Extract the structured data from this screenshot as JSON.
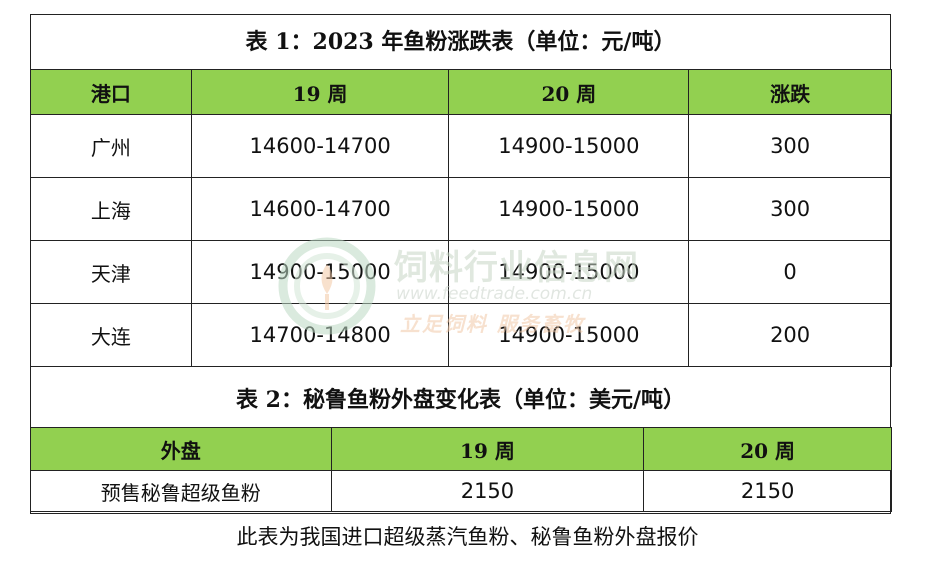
{
  "table1": {
    "title": "表 1：2023 年鱼粉涨跌表（单位：元/吨）",
    "headers": [
      "港口",
      "19 周",
      "20 周",
      "涨跌"
    ],
    "rows": [
      {
        "port": "广州",
        "w19": "14600-14700",
        "w20": "14900-15000",
        "change": "300"
      },
      {
        "port": "上海",
        "w19": "14600-14700",
        "w20": "14900-15000",
        "change": "300"
      },
      {
        "port": "天津",
        "w19": "14900-15000",
        "w20": "14900-15000",
        "change": "0"
      },
      {
        "port": "大连",
        "w19": "14700-14800",
        "w20": "14900-15000",
        "change": "200"
      }
    ]
  },
  "table2": {
    "title": "表 2：秘鲁鱼粉外盘变化表（单位：美元/吨）",
    "headers": [
      "外盘",
      "19 周",
      "20 周"
    ],
    "rows": [
      {
        "item": "预售秘鲁超级鱼粉",
        "w19": "2150",
        "w20": "2150"
      }
    ]
  },
  "caption": "此表为我国进口超级蒸汽鱼粉、秘鲁鱼粉外盘报价",
  "watermark": {
    "name": "饲料行业信息网",
    "url": "www.feedtrade.com.cn",
    "slogan": "立足饲料  服务畜牧"
  },
  "colors": {
    "header_bg": "#92d050",
    "border": "#222222"
  }
}
